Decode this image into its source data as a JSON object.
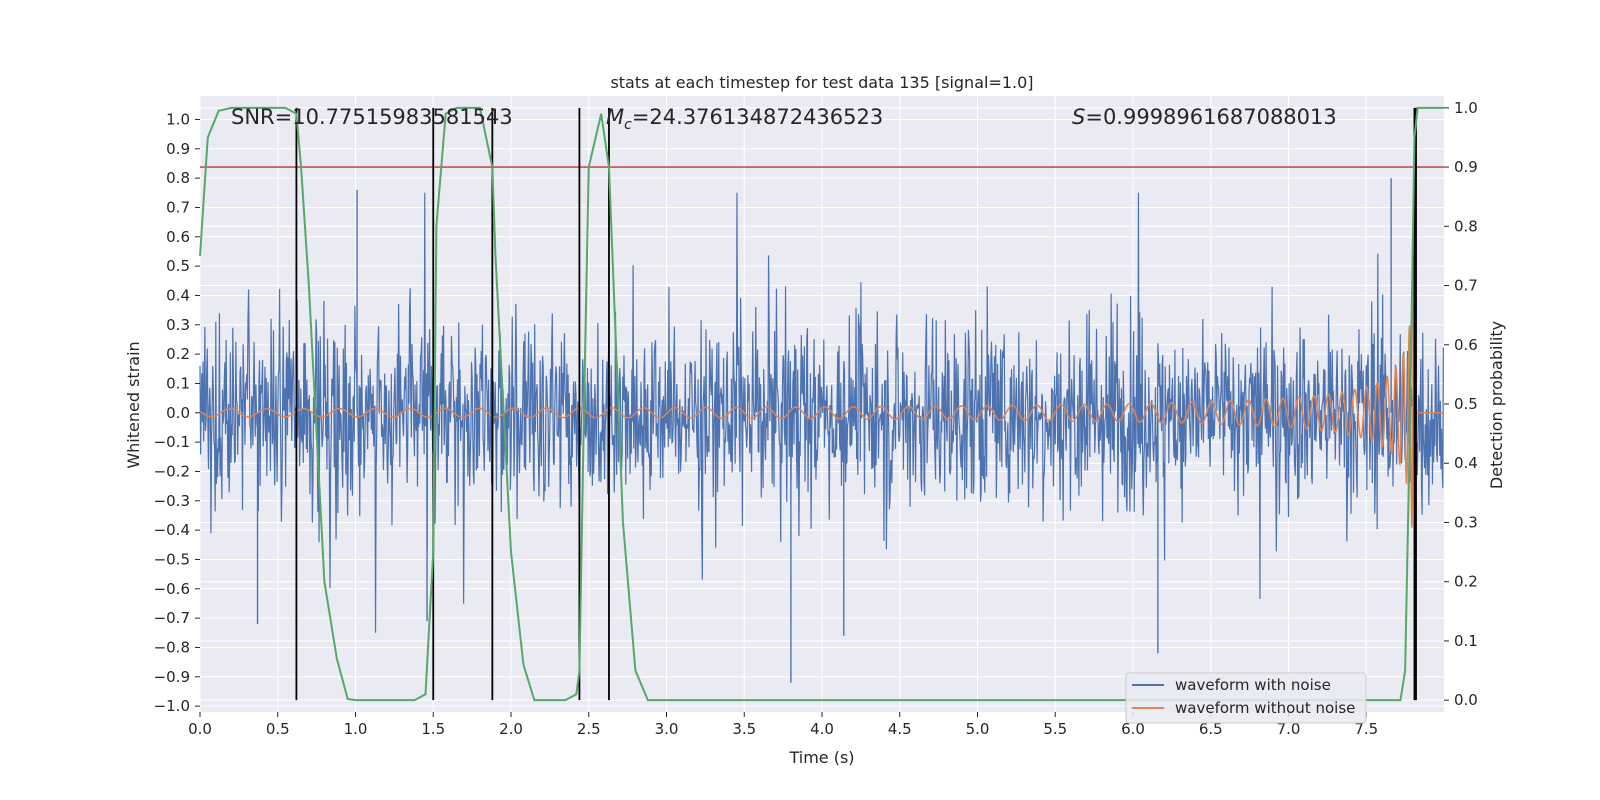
{
  "chart_data": {
    "type": "line",
    "title": "stats at each timestep for test data 135 [signal=1.0]",
    "xlabel": "Time (s)",
    "ylabel": "Whitened strain",
    "y2label": "Detection probability",
    "xlim": [
      0.0,
      8.0
    ],
    "ylim": [
      -1.02,
      1.08
    ],
    "y2lim": [
      -0.02,
      1.02
    ],
    "xticks": [
      "0.0",
      "0.5",
      "1.0",
      "1.5",
      "2.0",
      "2.5",
      "3.0",
      "3.5",
      "4.0",
      "4.5",
      "5.0",
      "5.5",
      "6.0",
      "6.5",
      "7.0",
      "7.5"
    ],
    "xtick_values": [
      0,
      0.5,
      1,
      1.5,
      2,
      2.5,
      3,
      3.5,
      4,
      4.5,
      5,
      5.5,
      6,
      6.5,
      7,
      7.5
    ],
    "yticks": [
      "1.0",
      "0.9",
      "0.8",
      "0.7",
      "0.6",
      "0.5",
      "0.4",
      "0.3",
      "0.2",
      "0.1",
      "0.0",
      "−0.1",
      "−0.2",
      "−0.3",
      "−0.4",
      "−0.5",
      "−0.6",
      "−0.7",
      "−0.8",
      "−0.9",
      "−1.0"
    ],
    "ytick_values": [
      1,
      0.9,
      0.8,
      0.7,
      0.6,
      0.5,
      0.4,
      0.3,
      0.2,
      0.1,
      0,
      -0.1,
      -0.2,
      -0.3,
      -0.4,
      -0.5,
      -0.6,
      -0.7,
      -0.8,
      -0.9,
      -1.0
    ],
    "y2ticks": [
      "1.0",
      "0.9",
      "0.8",
      "0.7",
      "0.6",
      "0.5",
      "0.4",
      "0.3",
      "0.2",
      "0.1",
      "0.0"
    ],
    "y2tick_values": [
      1,
      0.9,
      0.8,
      0.7,
      0.6,
      0.5,
      0.4,
      0.3,
      0.2,
      0.1,
      0
    ],
    "annotations": {
      "snr_label": "SNR=10.77515983581543",
      "mc_symbol": "M",
      "mc_sub": "c",
      "mc_value": "=24.376134872436523",
      "s_symbol": "S",
      "s_value": "=0.9998961687088013"
    },
    "threshold_line": {
      "axis": "y2",
      "value": 0.9,
      "color": "#c44e52"
    },
    "detection_vlines": [
      0.62,
      1.5,
      1.88,
      2.44,
      2.63,
      7.81,
      7.82
    ],
    "series": [
      {
        "name": "waveform with noise",
        "color": "#4c72b0",
        "axis": "y",
        "description": "dense noisy whitened strain",
        "sample_rate": 256,
        "duration": 8.0,
        "typical_amplitude": 0.25,
        "max_peak": 0.8,
        "min_peak": -0.92
      },
      {
        "name": "waveform without noise",
        "color": "#dd8452",
        "axis": "y",
        "description": "chirp signal",
        "coalescence_time": 7.82,
        "amplitude_start": 0.005,
        "amplitude_peak": 0.5
      },
      {
        "name": "detection probability",
        "color": "#55a868",
        "axis": "y2",
        "t": [
          0.0,
          0.05,
          0.12,
          0.2,
          0.3,
          0.4,
          0.55,
          0.62,
          0.65,
          0.7,
          0.75,
          0.8,
          0.88,
          0.95,
          1.0,
          1.1,
          1.2,
          1.3,
          1.38,
          1.45,
          1.5,
          1.52,
          1.58,
          1.65,
          1.72,
          1.8,
          1.88,
          1.9,
          1.95,
          2.0,
          2.08,
          2.15,
          2.25,
          2.35,
          2.42,
          2.44,
          2.47,
          2.5,
          2.58,
          2.63,
          2.66,
          2.72,
          2.8,
          2.88,
          2.95,
          3.0,
          4.0,
          5.0,
          6.0,
          7.0,
          7.5,
          7.6,
          7.65,
          7.72,
          7.75,
          7.78,
          7.81,
          7.83,
          7.86,
          7.9,
          7.92,
          7.95,
          8.0
        ],
        "p": [
          0.75,
          0.95,
          0.995,
          1.0,
          1.0,
          1.0,
          1.0,
          0.99,
          0.9,
          0.7,
          0.45,
          0.2,
          0.07,
          0.002,
          0.0,
          0.0,
          0.0,
          0.0,
          0.0,
          0.01,
          0.25,
          0.8,
          0.99,
          1.0,
          1.0,
          1.0,
          0.9,
          0.75,
          0.5,
          0.25,
          0.06,
          0.0,
          0.0,
          0.0,
          0.01,
          0.05,
          0.5,
          0.9,
          0.99,
          0.9,
          0.7,
          0.3,
          0.05,
          0.0,
          0.0,
          0.0,
          0.0,
          0.0,
          0.0,
          0.0,
          0.0,
          0.0,
          0.0,
          0.0,
          0.05,
          0.45,
          0.95,
          1.0,
          1.0,
          1.0,
          1.0,
          1.0,
          1.0
        ]
      }
    ],
    "legend": {
      "placement": "lower-right",
      "entries": [
        "waveform with noise",
        "waveform without noise"
      ]
    },
    "grid": true
  }
}
